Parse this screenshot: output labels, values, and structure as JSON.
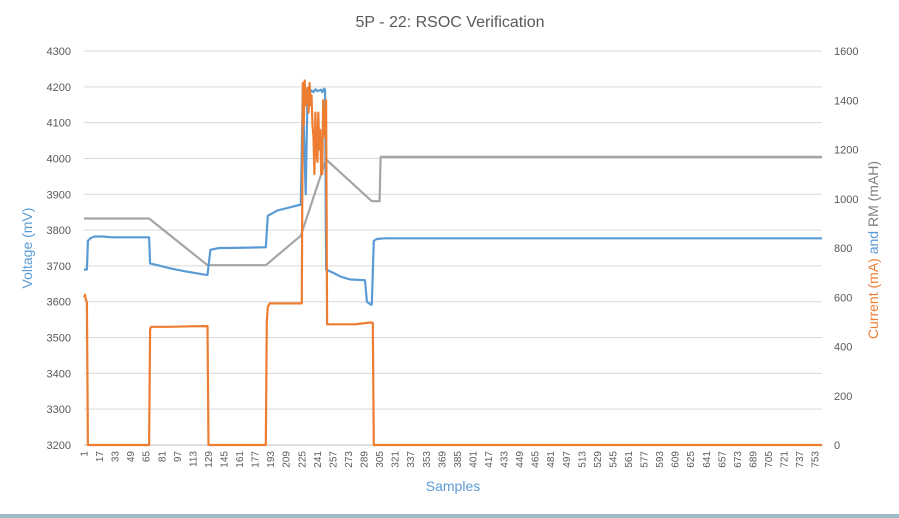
{
  "chart_data": {
    "type": "line",
    "title": "5P - 22: RSOC Verification",
    "xlabel": "Samples",
    "ylabel_left": "Voltage (mV)",
    "ylabel_right_parts": [
      {
        "text": "Current (mA)",
        "color": "#ed7d31"
      },
      {
        "text": " and ",
        "color": "#5b9bd5"
      },
      {
        "text": "RM (mAH)",
        "color": "#7f7f7f"
      }
    ],
    "xlim": [
      1,
      760
    ],
    "y_left_lim": [
      3200,
      4300
    ],
    "y_right_lim": [
      0,
      1600
    ],
    "y_left_ticks": [
      3200,
      3300,
      3400,
      3500,
      3600,
      3700,
      3800,
      3900,
      4000,
      4100,
      4200,
      4300
    ],
    "y_right_ticks": [
      0,
      200,
      400,
      600,
      800,
      1000,
      1200,
      1400,
      1600
    ],
    "x_ticks": [
      1,
      17,
      33,
      49,
      65,
      81,
      97,
      113,
      129,
      145,
      161,
      177,
      193,
      209,
      225,
      241,
      257,
      273,
      289,
      305,
      321,
      337,
      353,
      369,
      385,
      401,
      417,
      433,
      449,
      465,
      481,
      497,
      513,
      529,
      545,
      561,
      577,
      593,
      609,
      625,
      641,
      657,
      673,
      689,
      705,
      721,
      737,
      753
    ],
    "grid": true,
    "series": [
      {
        "axis": "left",
        "color": "#5b9bd5",
        "x": [
          1,
          4,
          5,
          8,
          12,
          20,
          30,
          68,
          69,
          75,
          90,
          105,
          120,
          127,
          128,
          131,
          140,
          150,
          185,
          188,
          190,
          200,
          215,
          222,
          224,
          226,
          229,
          231,
          233,
          235,
          237,
          239,
          241,
          243,
          245,
          246,
          248,
          249,
          250,
          258,
          265,
          275,
          290,
          292,
          296,
          297,
          299,
          302,
          310,
          400,
          600,
          760
        ],
        "y": [
          3690,
          3690,
          3770,
          3778,
          3782,
          3782,
          3780,
          3780,
          3707,
          3703,
          3693,
          3685,
          3678,
          3675,
          3675,
          3745,
          3750,
          3750,
          3752,
          3752,
          3840,
          3855,
          3865,
          3870,
          3870,
          4190,
          3900,
          4190,
          4180,
          4190,
          4185,
          4193,
          4188,
          4190,
          4192,
          4185,
          4195,
          4190,
          3690,
          3680,
          3670,
          3662,
          3660,
          3600,
          3592,
          3592,
          3770,
          3775,
          3777,
          3777,
          3777,
          3777
        ]
      },
      {
        "axis": "right",
        "color": "#ed7d31",
        "x": [
          1,
          2,
          3,
          4,
          5,
          6,
          10,
          68,
          69,
          70,
          90,
          110,
          127,
          128,
          129,
          130,
          150,
          188,
          189,
          190,
          192,
          210,
          224,
          225,
          226,
          227,
          228,
          229,
          230,
          231,
          232,
          233,
          234,
          235,
          236,
          237,
          238,
          239,
          240,
          241,
          242,
          243,
          244,
          245,
          246,
          247,
          248,
          249,
          250,
          251,
          260,
          280,
          290,
          297,
          298,
          299,
          310,
          400,
          600,
          760
        ],
        "y": [
          600,
          610,
          590,
          580,
          0,
          0,
          0,
          0,
          470,
          480,
          480,
          482,
          483,
          483,
          0,
          0,
          0,
          0,
          500,
          560,
          575,
          575,
          575,
          575,
          1470,
          1300,
          1480,
          1380,
          1420,
          1450,
          1350,
          1470,
          1380,
          1420,
          1300,
          1250,
          1100,
          1350,
          1200,
          1150,
          1350,
          1200,
          1280,
          1100,
          1100,
          1400,
          1300,
          1250,
          1400,
          490,
          490,
          490,
          495,
          498,
          495,
          0,
          0,
          0,
          0,
          0
        ]
      },
      {
        "axis": "right",
        "color": "#a5a5a5",
        "x": [
          1,
          68,
          128,
          188,
          224,
          250,
          297,
          305,
          306,
          760
        ],
        "y": [
          920,
          920,
          730,
          730,
          850,
          1160,
          990,
          990,
          1170,
          1170
        ]
      }
    ]
  }
}
